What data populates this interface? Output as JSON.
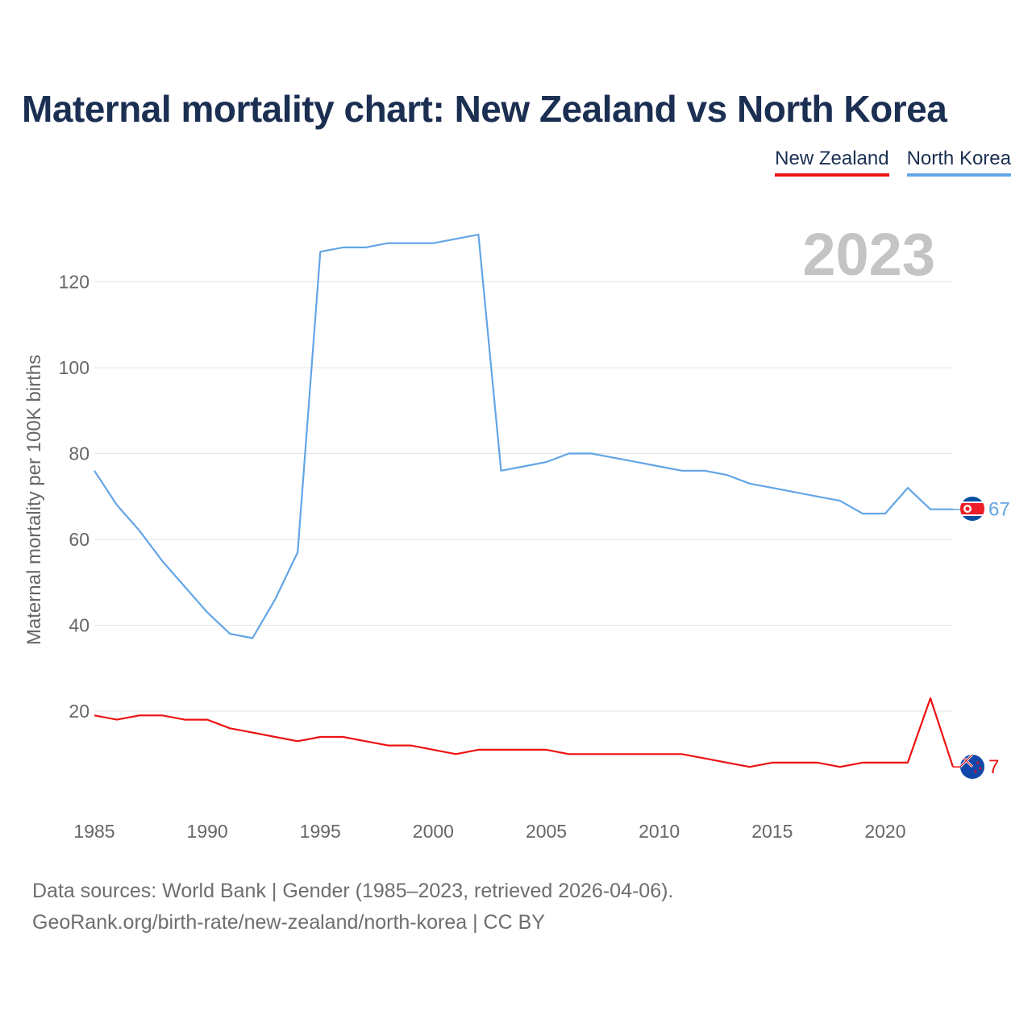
{
  "chart_data": {
    "type": "line",
    "title": "Maternal mortality chart: New Zealand vs North Korea",
    "ylabel": "Maternal mortality per 100K births",
    "xlabel": "",
    "current_year": "2023",
    "xlim": [
      1985,
      2023
    ],
    "ylim": [
      0,
      131
    ],
    "x_ticks": [
      1985,
      1990,
      1995,
      2000,
      2005,
      2010,
      2015,
      2020
    ],
    "y_ticks": [
      20,
      40,
      60,
      80,
      100,
      120
    ],
    "grid": true,
    "legend_position": "top-right",
    "x": [
      1985,
      1986,
      1987,
      1988,
      1989,
      1990,
      1991,
      1992,
      1993,
      1994,
      1995,
      1996,
      1997,
      1998,
      1999,
      2000,
      2001,
      2002,
      2003,
      2004,
      2005,
      2006,
      2007,
      2008,
      2009,
      2010,
      2011,
      2012,
      2013,
      2014,
      2015,
      2016,
      2017,
      2018,
      2019,
      2020,
      2021,
      2022,
      2023
    ],
    "series": [
      {
        "name": "New Zealand",
        "color": "#ee1111",
        "end_value": "7",
        "flag": "new-zealand-flag-icon",
        "values": [
          19,
          18,
          19,
          19,
          18,
          18,
          16,
          15,
          14,
          13,
          14,
          14,
          13,
          12,
          12,
          11,
          10,
          11,
          11,
          11,
          11,
          10,
          10,
          10,
          10,
          10,
          10,
          9,
          8,
          7,
          8,
          8,
          8,
          7,
          8,
          8,
          8,
          23,
          7
        ]
      },
      {
        "name": "North Korea",
        "color": "#63a5e6",
        "end_value": "67",
        "flag": "north-korea-flag-icon",
        "values": [
          76,
          68,
          62,
          55,
          49,
          43,
          38,
          37,
          46,
          57,
          127,
          128,
          128,
          129,
          129,
          129,
          130,
          131,
          76,
          77,
          78,
          80,
          80,
          79,
          78,
          77,
          76,
          76,
          75,
          73,
          72,
          71,
          70,
          69,
          66,
          66,
          72,
          67,
          67
        ]
      }
    ]
  },
  "footer": {
    "line1": "Data sources: World Bank | Gender (1985–2023, retrieved 2026-04-06).",
    "line2": "GeoRank.org/birth-rate/new-zealand/north-korea | CC BY"
  }
}
